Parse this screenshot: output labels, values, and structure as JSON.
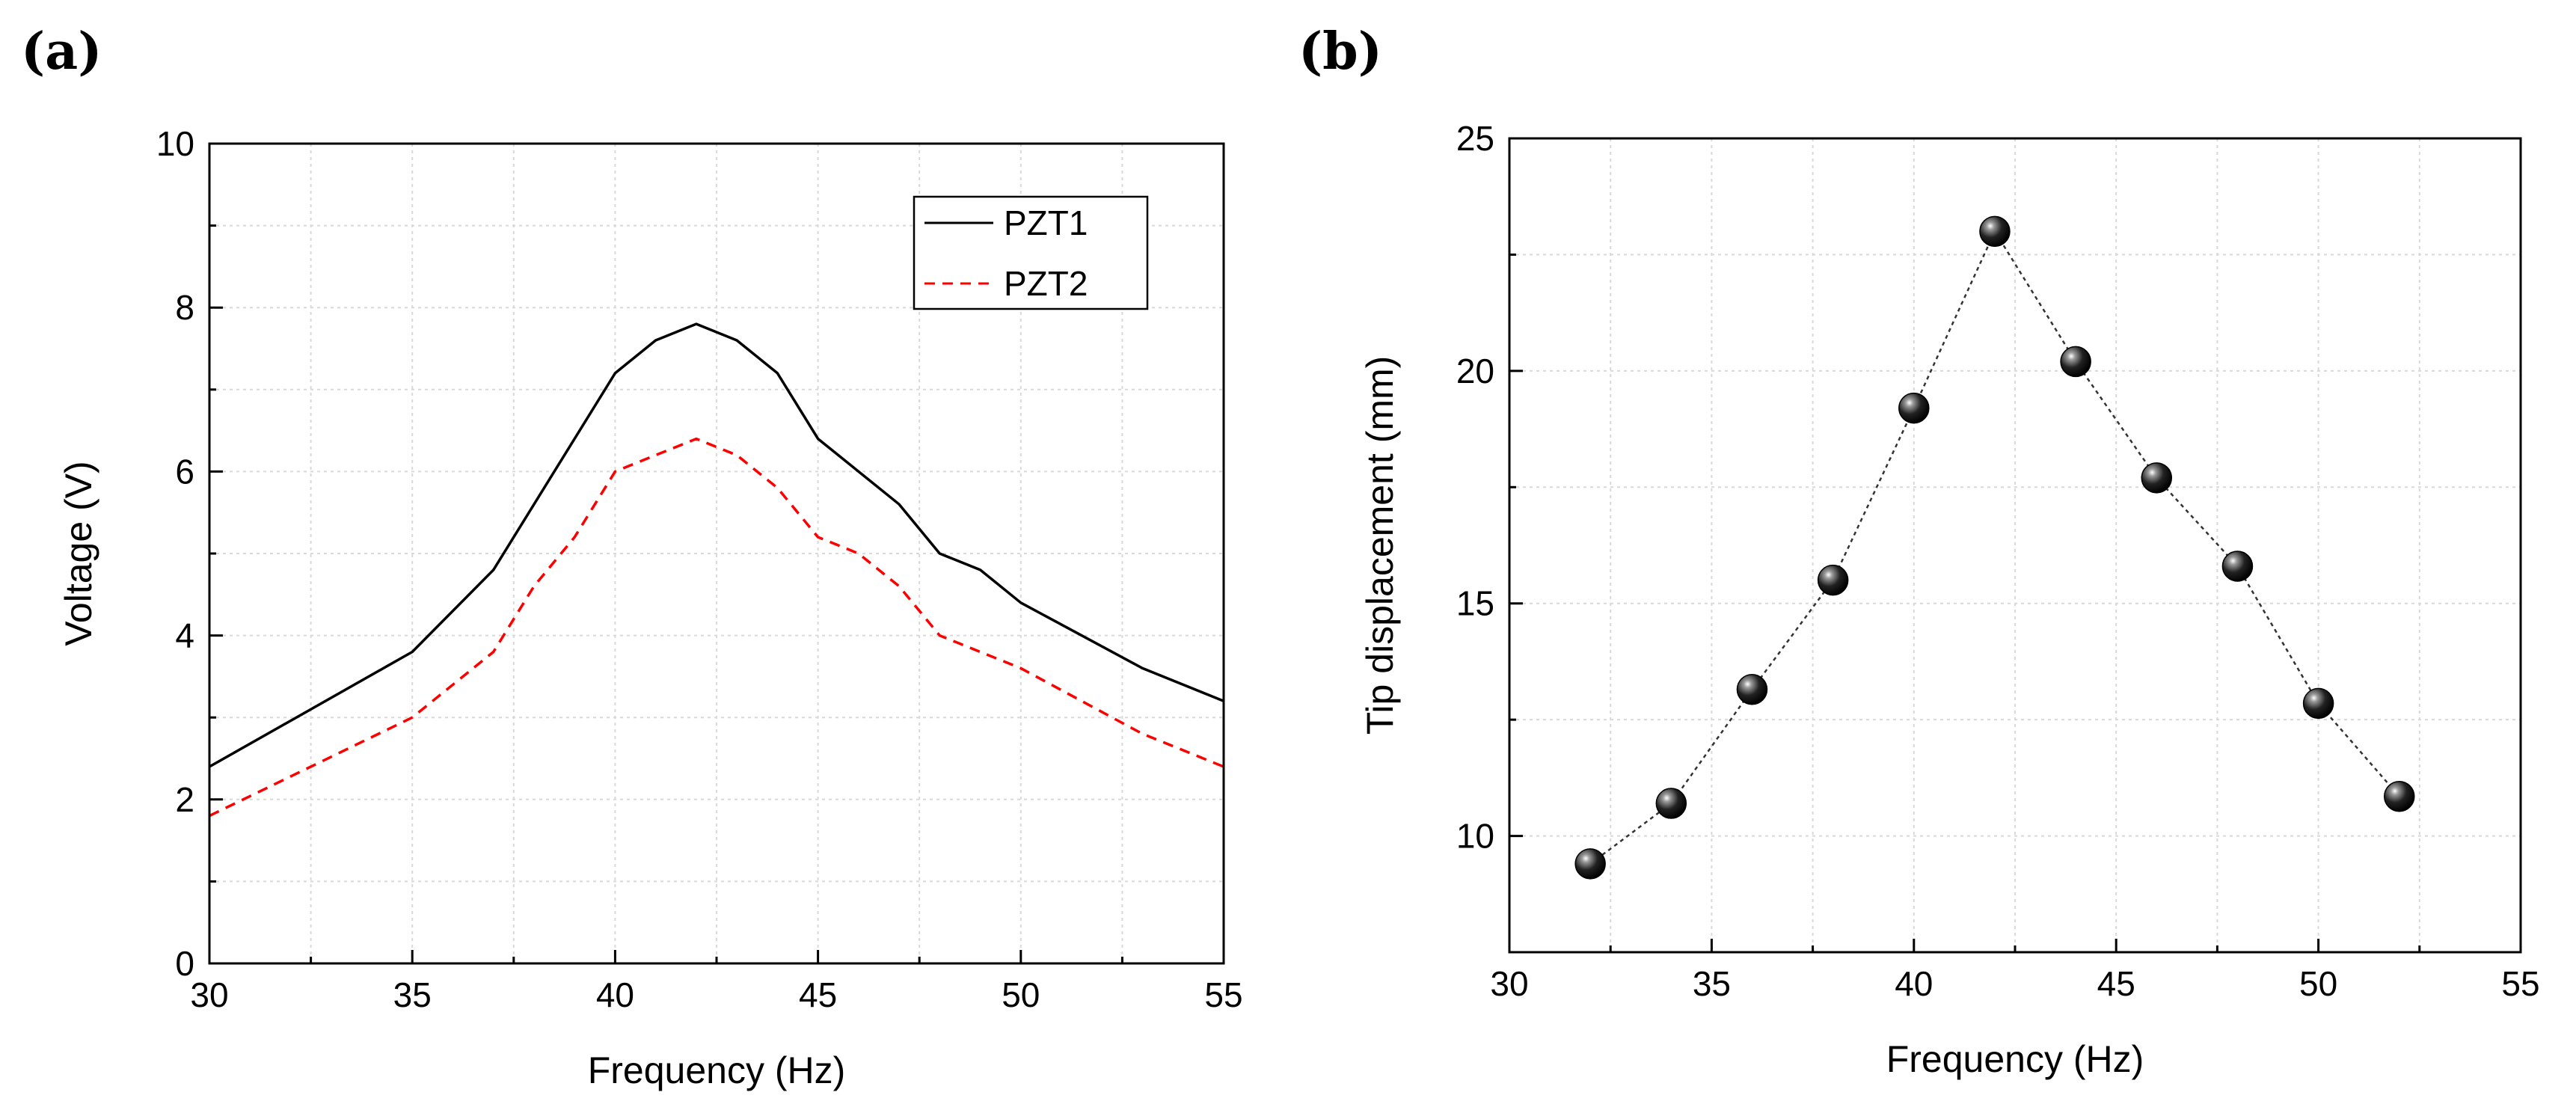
{
  "chart_data": [
    {
      "type": "line",
      "panel_label": "(a)",
      "xlabel": "Frequency (Hz)",
      "ylabel": "Voltage (V)",
      "xlim": [
        30,
        55
      ],
      "ylim": [
        0,
        10
      ],
      "xticks": [
        30,
        35,
        40,
        45,
        50,
        55
      ],
      "yticks": [
        0,
        2,
        4,
        6,
        8,
        10
      ],
      "grid": true,
      "legend_position": "top-right",
      "series": [
        {
          "name": "PZT1",
          "color": "#000000",
          "style": "solid",
          "x": [
            30,
            35,
            37,
            40,
            41,
            42,
            43,
            44,
            45,
            47,
            48,
            49,
            50,
            53,
            55
          ],
          "values": [
            2.4,
            3.8,
            4.8,
            7.2,
            7.6,
            7.8,
            7.6,
            7.2,
            6.4,
            5.6,
            5.0,
            4.8,
            4.4,
            3.6,
            3.2
          ]
        },
        {
          "name": "PZT2",
          "color": "#ff0000",
          "style": "dashed",
          "x": [
            30,
            35,
            37,
            38,
            39,
            40,
            41,
            42,
            43,
            44,
            45,
            46,
            47,
            48,
            50,
            53,
            55
          ],
          "values": [
            1.8,
            3.0,
            3.8,
            4.6,
            5.2,
            6.0,
            6.2,
            6.4,
            6.2,
            5.8,
            5.2,
            5.0,
            4.6,
            4.0,
            3.6,
            2.8,
            2.4
          ]
        }
      ]
    },
    {
      "type": "scatter",
      "panel_label": "(b)",
      "xlabel": "Frequency (Hz)",
      "ylabel": "Tip displacement (mm)",
      "xlim": [
        30,
        55
      ],
      "ylim": [
        7.5,
        25
      ],
      "xticks": [
        30,
        35,
        40,
        45,
        50,
        55
      ],
      "yticks": [
        10,
        15,
        20,
        25
      ],
      "grid": true,
      "connect_points": "dotted",
      "series": [
        {
          "name": "Tip displacement",
          "color": "#000000",
          "x": [
            32,
            34,
            36,
            38,
            40,
            42,
            44,
            46,
            48,
            50,
            52
          ],
          "values": [
            9.4,
            10.7,
            13.15,
            15.5,
            19.2,
            23.0,
            20.2,
            17.7,
            15.8,
            12.85,
            10.85
          ]
        }
      ]
    }
  ]
}
